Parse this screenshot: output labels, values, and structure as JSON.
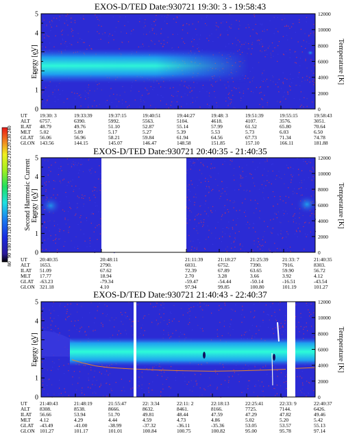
{
  "chart_data": [
    {
      "type": "heatmap",
      "title": "EXOS-D/TED   Date:930721  19:30: 3 - 19:58:43",
      "ylabel": "Energy [eV]",
      "y2label": "Temperature [K]",
      "ylim": [
        0,
        5
      ],
      "yticks": [
        "0",
        "1",
        "2",
        "3",
        "4",
        "5"
      ],
      "y2lim": [
        0,
        12000
      ],
      "y2ticks": [
        "0",
        "2000",
        "4000",
        "6000",
        "8000",
        "10000",
        "12000"
      ],
      "band": {
        "center_eV": 2.35,
        "low_eV": 1.7,
        "high_eV": 3.0,
        "start_time": "19:30: 3",
        "fade_time": "19:48: 3"
      },
      "gaps": [],
      "orbit_labels": [
        "UT",
        "ALT",
        "ILAT",
        "MLT",
        "GLAT",
        "GLON"
      ],
      "orbit_columns": [
        [
          "19:30: 3",
          "6757.",
          "48.79",
          "5.02",
          "56.06",
          "143.56"
        ],
        [
          "19:33:39",
          "6390.",
          "49.76",
          "5.09",
          "56.96",
          "144.15"
        ],
        [
          "19:37:15",
          "5992.",
          "51.10",
          "5.17",
          "58.21",
          "145.07"
        ],
        [
          "19:40:51",
          "5563.",
          "52.87",
          "5.27",
          "59.84",
          "146.47"
        ],
        [
          "19:44:27",
          "5104.",
          "55.14",
          "5.39",
          "61.94",
          "148.58"
        ],
        [
          "19:48: 3",
          "4618.",
          "57.99",
          "5.53",
          "64.56",
          "151.85"
        ],
        [
          "19:51:39",
          "4107.",
          "61.52",
          "5.73",
          "67.73",
          "157.10"
        ],
        [
          "19:55:15",
          "3576.",
          "65.80",
          "6.03",
          "71.34",
          "166.11"
        ],
        [
          "19:58:43",
          "3051.",
          "70.64",
          "6.50",
          "74.78",
          "181.88"
        ]
      ]
    },
    {
      "type": "heatmap",
      "title": "EXOS-D/TED   Date:930721  20:40:35 - 21:40:35",
      "ylabel": "Energy [eV]",
      "y2label": "Temperature [K]",
      "ylim": [
        0,
        5
      ],
      "yticks": [
        "0",
        "1",
        "2",
        "3",
        "4",
        "5"
      ],
      "y2lim": [
        0,
        12000
      ],
      "y2ticks": [
        "0",
        "2000",
        "4000",
        "6000",
        "8000",
        "10000",
        "12000"
      ],
      "colorbar": {
        "label": "Second Harmonic Current",
        "ticks": [
          "80",
          "90",
          "100",
          "110",
          "120",
          "130",
          "140",
          "150",
          "160",
          "170",
          "180",
          "190",
          "200",
          "210",
          "220",
          "230",
          "240"
        ]
      },
      "gaps": [
        [
          "20:48:11",
          "21:11:39"
        ]
      ],
      "orbit_labels": [
        "UT",
        "ALT",
        "ILAT",
        "MLT",
        "GLAT",
        "GLON"
      ],
      "orbit_columns": [
        [
          "20:40:35",
          "1653.",
          "51.09",
          "17.77",
          "-63.23",
          "321.18"
        ],
        [
          "20:48:11",
          "2790.",
          "67.62",
          "18.94",
          "-79.34",
          "4.10"
        ],
        [
          "21:11:39",
          "6031.",
          "72.39",
          "2.70",
          "-59.47",
          "97.94"
        ],
        [
          "21:18:27",
          "6752.",
          "67.89",
          "3.28",
          "-54.44",
          "99.85"
        ],
        [
          "21:25:39",
          "7390.",
          "63.65",
          "3.66",
          "-50.14",
          "100.80"
        ],
        [
          "21:33: 7",
          "7916.",
          "59.90",
          "3.92",
          "-16.51",
          "101.19"
        ],
        [
          "21:40:35",
          "8303.",
          "56.72",
          "4.12",
          "-43.54",
          "101.27"
        ]
      ]
    },
    {
      "type": "heatmap",
      "title": "EXOS-D/TED   Date:930721  21:40:43 - 22:40:37",
      "ylabel": "Energy [eV]",
      "y2label": "Temperature [K]",
      "ylim": [
        0,
        5
      ],
      "yticks": [
        "0",
        "1",
        "2",
        "3",
        "4",
        "5"
      ],
      "y2lim": [
        0,
        12000
      ],
      "y2ticks": [
        "0",
        "2000",
        "4000",
        "6000",
        "8000",
        "10000",
        "12000"
      ],
      "band": {
        "center_eV": 2.55,
        "low_eV": 2.1,
        "high_eV": 3.0
      },
      "gaps": [
        [
          "21:55:47",
          "21:57:10"
        ],
        [
          "22:33: 9",
          "22:36:40"
        ]
      ],
      "temperature_line": "orange",
      "orbit_labels": [
        "UT",
        "ALT",
        "ILAT",
        "MLT",
        "GLAT",
        "GLON"
      ],
      "orbit_columns": [
        [
          "21:40:43",
          "8308.",
          "56.66",
          "4.12",
          "-43.49",
          "101.27"
        ],
        [
          "21:48:19",
          "8538.",
          "53.94",
          "4.29",
          "-41.00",
          "101.17"
        ],
        [
          "21:55:47",
          "8666.",
          "51.70",
          "4.44",
          "-38.99",
          "101.01"
        ],
        [
          "22: 3:34",
          "8632.",
          "49.81",
          "4.59",
          "-37.32",
          "100.84"
        ],
        [
          "22:11: 2",
          "8461.",
          "48.44",
          "4.73",
          "-36.11",
          "100.75"
        ],
        [
          "22:18:13",
          "8166.",
          "47.59",
          "4.86",
          "-35.36",
          "100.82"
        ],
        [
          "22:25:41",
          "7725.",
          "47.29",
          "5.02",
          "53.05",
          "95.00"
        ],
        [
          "22:33: 9",
          "7144.",
          "47.82",
          "5.20",
          "53.57",
          "95.78"
        ],
        [
          "22:40:37",
          "6426.",
          "49.46",
          "5.42",
          "55.13",
          "97.14"
        ]
      ]
    }
  ],
  "colors": {
    "background": "#2b2bd4",
    "band_core": "#2dfcd8",
    "band_mid": "#1fb2f0",
    "band_edge": "#2470e8",
    "noise": "#c23a6a",
    "temperature_line": "#e8842a",
    "gap": "#ffffff"
  }
}
